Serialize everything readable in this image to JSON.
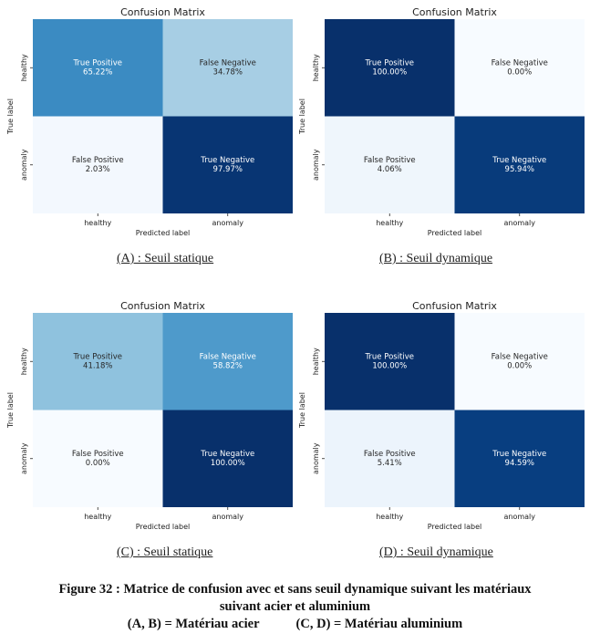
{
  "colors": {
    "scale": [
      "#f7fbff",
      "#deebf7",
      "#c6dbef",
      "#9ecae1",
      "#6baed6",
      "#4292c6",
      "#2171b5",
      "#08519c",
      "#08306b"
    ]
  },
  "chart_data": [
    {
      "type": "heatmap",
      "title": "Confusion Matrix",
      "xlabel": "Predicted label",
      "ylabel": "True label",
      "x_categories": [
        "healthy",
        "anomaly"
      ],
      "y_categories": [
        "healthy",
        "anomaly"
      ],
      "cells": [
        [
          {
            "label": "True Positive",
            "value": "65.22%"
          },
          {
            "label": "False Negative",
            "value": "34.78%"
          }
        ],
        [
          {
            "label": "False Positive",
            "value": "2.03%"
          },
          {
            "label": "True Negative",
            "value": "97.97%"
          }
        ]
      ]
    },
    {
      "type": "heatmap",
      "title": "Confusion Matrix",
      "xlabel": "Predicted label",
      "ylabel": "True label",
      "x_categories": [
        "healthy",
        "anomaly"
      ],
      "y_categories": [
        "healthy",
        "anomaly"
      ],
      "cells": [
        [
          {
            "label": "True Positive",
            "value": "100.00%"
          },
          {
            "label": "False Negative",
            "value": "0.00%"
          }
        ],
        [
          {
            "label": "False Positive",
            "value": "4.06%"
          },
          {
            "label": "True Negative",
            "value": "95.94%"
          }
        ]
      ]
    },
    {
      "type": "heatmap",
      "title": "Confusion Matrix",
      "xlabel": "Predicted label",
      "ylabel": "True label",
      "x_categories": [
        "healthy",
        "anomaly"
      ],
      "y_categories": [
        "healthy",
        "anomaly"
      ],
      "cells": [
        [
          {
            "label": "True Positive",
            "value": "41.18%"
          },
          {
            "label": "False Negative",
            "value": "58.82%"
          }
        ],
        [
          {
            "label": "False Positive",
            "value": "0.00%"
          },
          {
            "label": "True Negative",
            "value": "100.00%"
          }
        ]
      ]
    },
    {
      "type": "heatmap",
      "title": "Confusion Matrix",
      "xlabel": "Predicted label",
      "ylabel": "True label",
      "x_categories": [
        "healthy",
        "anomaly"
      ],
      "y_categories": [
        "healthy",
        "anomaly"
      ],
      "cells": [
        [
          {
            "label": "True Positive",
            "value": "100.00%"
          },
          {
            "label": "False Negative",
            "value": "0.00%"
          }
        ],
        [
          {
            "label": "False Positive",
            "value": "5.41%"
          },
          {
            "label": "True Negative",
            "value": "94.59%"
          }
        ]
      ]
    }
  ],
  "subcaptions": [
    "(A) : Seuil statique",
    "(B) : Seuil dynamique",
    "(C) : Seuil statique",
    "(D) : Seuil dynamique"
  ],
  "figure_caption": {
    "line1": "Figure 32 : Matrice de confusion avec et sans seuil dynamique suivant les matériaux",
    "line2": "suivant acier et aluminium",
    "line3a": "(A, B) = Matériau acier",
    "line3b": "(C, D) = Matériau aluminium"
  }
}
